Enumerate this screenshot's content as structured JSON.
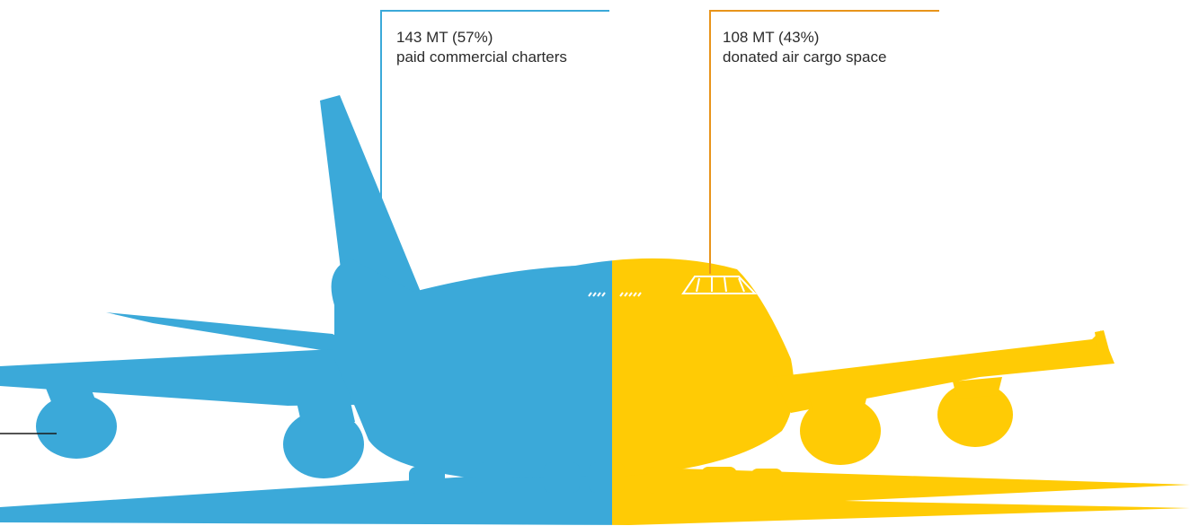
{
  "segments": [
    {
      "id": "paid",
      "amount": "143 MT (57%)",
      "label": "paid commercial charters",
      "share": 0.57,
      "color": "#3BA9D9"
    },
    {
      "id": "donated",
      "amount": "108 MT (43%)",
      "label": "donated air cargo space",
      "share": 0.43,
      "color": "#FFCB05"
    }
  ],
  "colors": {
    "leader_blue": "#3BA9D9",
    "leader_orange": "#E8941A",
    "leader_black": "#1a1a1a",
    "window_marks": "#ffffff"
  }
}
